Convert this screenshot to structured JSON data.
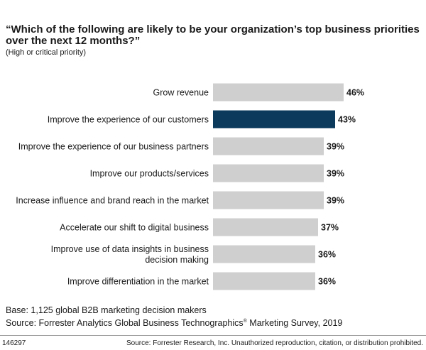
{
  "title": "“Which of the following are likely to be your organization’s top business priorities over the next 12 months?”",
  "subtitle": "(High or critical priority)",
  "chart_data": {
    "type": "bar",
    "orientation": "horizontal",
    "categories": [
      "Grow revenue",
      [
        "Improve the experience of our customers"
      ],
      [
        "Improve the experience of our business partners"
      ],
      [
        "Improve our products/services"
      ],
      [
        "Increase influence and brand reach in the market"
      ],
      [
        "Accelerate our shift to digital business"
      ],
      [
        "Improve use of data insights in business",
        "decision making"
      ],
      [
        "Improve differentiation in the market"
      ]
    ],
    "values": [
      46,
      43,
      39,
      39,
      39,
      37,
      36,
      36
    ],
    "value_labels": [
      "46%",
      "43%",
      "39%",
      "39%",
      "39%",
      "37%",
      "36%",
      "36%"
    ],
    "highlight_index": 1,
    "colors": {
      "default": "#cfcfcf",
      "highlight": "#0c3a5c"
    },
    "title": "“Which of the following are likely to be your organization’s top business priorities over the next 12 months?”",
    "subtitle": "(High or critical priority)",
    "xlabel": "",
    "ylabel": "",
    "grid": false,
    "legend": "none"
  },
  "notes": {
    "base": "Base: 1,125 global B2B marketing decision makers",
    "source_prefix": "Source: Forrester Analytics Global Business Technographics",
    "source_reg": "®",
    "source_suffix": " Marketing Survey, 2019"
  },
  "footer": {
    "id": "146297",
    "note": "Source: Forrester Research, Inc. Unauthorized reproduction, citation, or distribution prohibited."
  }
}
